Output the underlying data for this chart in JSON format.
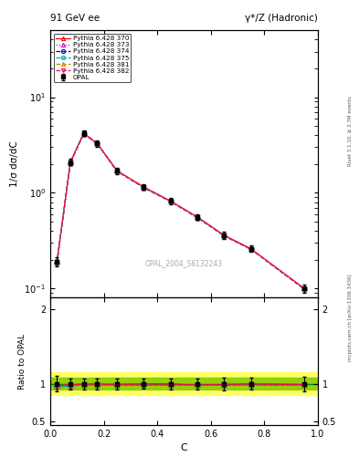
{
  "title_left": "91 GeV ee",
  "title_right": "γ*/Z (Hadronic)",
  "ylabel_main": "1/σ dσ/dC",
  "ylabel_ratio": "Ratio to OPAL",
  "xlabel": "C",
  "watermark": "OPAL_2004_S6132243",
  "right_label_top": "Rivet 3.1.10, ≥ 2.7M events",
  "right_label_bottom": "mcplots.cern.ch [arXiv:1306.3436]",
  "opal_x": [
    0.025,
    0.075,
    0.125,
    0.175,
    0.25,
    0.35,
    0.45,
    0.55,
    0.65,
    0.75,
    0.95
  ],
  "opal_y": [
    0.19,
    2.1,
    4.2,
    3.3,
    1.7,
    1.15,
    0.82,
    0.56,
    0.36,
    0.26,
    0.1
  ],
  "opal_yerr": [
    0.02,
    0.15,
    0.3,
    0.25,
    0.12,
    0.08,
    0.06,
    0.04,
    0.03,
    0.02,
    0.01
  ],
  "pythia_x": [
    0.025,
    0.075,
    0.125,
    0.175,
    0.25,
    0.35,
    0.45,
    0.55,
    0.65,
    0.75,
    0.95
  ],
  "pythia_370_y": [
    0.19,
    2.1,
    4.2,
    3.3,
    1.7,
    1.15,
    0.82,
    0.56,
    0.36,
    0.26,
    0.1
  ],
  "pythia_373_y": [
    0.185,
    2.05,
    4.15,
    3.27,
    1.68,
    1.13,
    0.81,
    0.55,
    0.355,
    0.257,
    0.098
  ],
  "pythia_374_y": [
    0.185,
    2.05,
    4.15,
    3.27,
    1.68,
    1.13,
    0.81,
    0.55,
    0.355,
    0.257,
    0.098
  ],
  "pythia_375_y": [
    0.185,
    2.05,
    4.15,
    3.27,
    1.68,
    1.13,
    0.81,
    0.55,
    0.355,
    0.257,
    0.098
  ],
  "pythia_381_y": [
    0.188,
    2.08,
    4.18,
    3.29,
    1.69,
    1.145,
    0.815,
    0.552,
    0.357,
    0.259,
    0.099
  ],
  "pythia_382_y": [
    0.188,
    2.08,
    4.18,
    3.29,
    1.69,
    1.145,
    0.815,
    0.552,
    0.357,
    0.259,
    0.099
  ],
  "ratio_370": [
    0.97,
    0.985,
    1.0,
    0.995,
    0.99,
    1.0,
    1.0,
    0.98,
    0.99,
    1.0,
    0.99
  ],
  "ratio_373": [
    0.96,
    0.972,
    0.987,
    0.991,
    0.986,
    0.983,
    0.987,
    0.98,
    0.986,
    0.99,
    0.98
  ],
  "ratio_374": [
    0.96,
    0.972,
    0.987,
    0.991,
    0.986,
    0.983,
    0.987,
    0.98,
    0.986,
    0.99,
    0.98
  ],
  "ratio_375": [
    0.96,
    0.972,
    0.987,
    0.991,
    0.986,
    0.983,
    0.987,
    0.98,
    0.986,
    0.99,
    0.98
  ],
  "ratio_381": [
    0.975,
    0.988,
    0.995,
    0.997,
    0.994,
    0.996,
    0.994,
    0.986,
    0.992,
    0.996,
    0.99
  ],
  "ratio_382": [
    0.975,
    0.988,
    0.995,
    0.997,
    0.994,
    0.996,
    0.994,
    0.986,
    0.992,
    0.996,
    0.99
  ],
  "color_370": "#ff0000",
  "color_373": "#cc00cc",
  "color_374": "#0000cc",
  "color_375": "#00aaaa",
  "color_381": "#cc8800",
  "color_382": "#ff0066",
  "ylim_main_log": [
    0.08,
    50
  ],
  "ylim_ratio": [
    0.45,
    2.15
  ],
  "xlim": [
    0.0,
    1.0
  ],
  "bg_color": "#ffffff",
  "band_green_inner": "#88cc00",
  "band_yellow_outer": "#ffff44"
}
